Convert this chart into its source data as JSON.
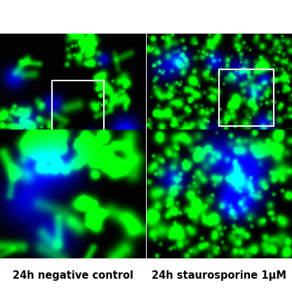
{
  "fig_width": 4.16,
  "fig_height": 4.17,
  "dpi": 100,
  "background_color": "#ffffff",
  "text_color": "#000000",
  "label_left": "24h negative control",
  "label_right": "24h staurosporine 1μM",
  "label_fontsize": 10.5,
  "label_fontweight": "bold",
  "seed": 42
}
